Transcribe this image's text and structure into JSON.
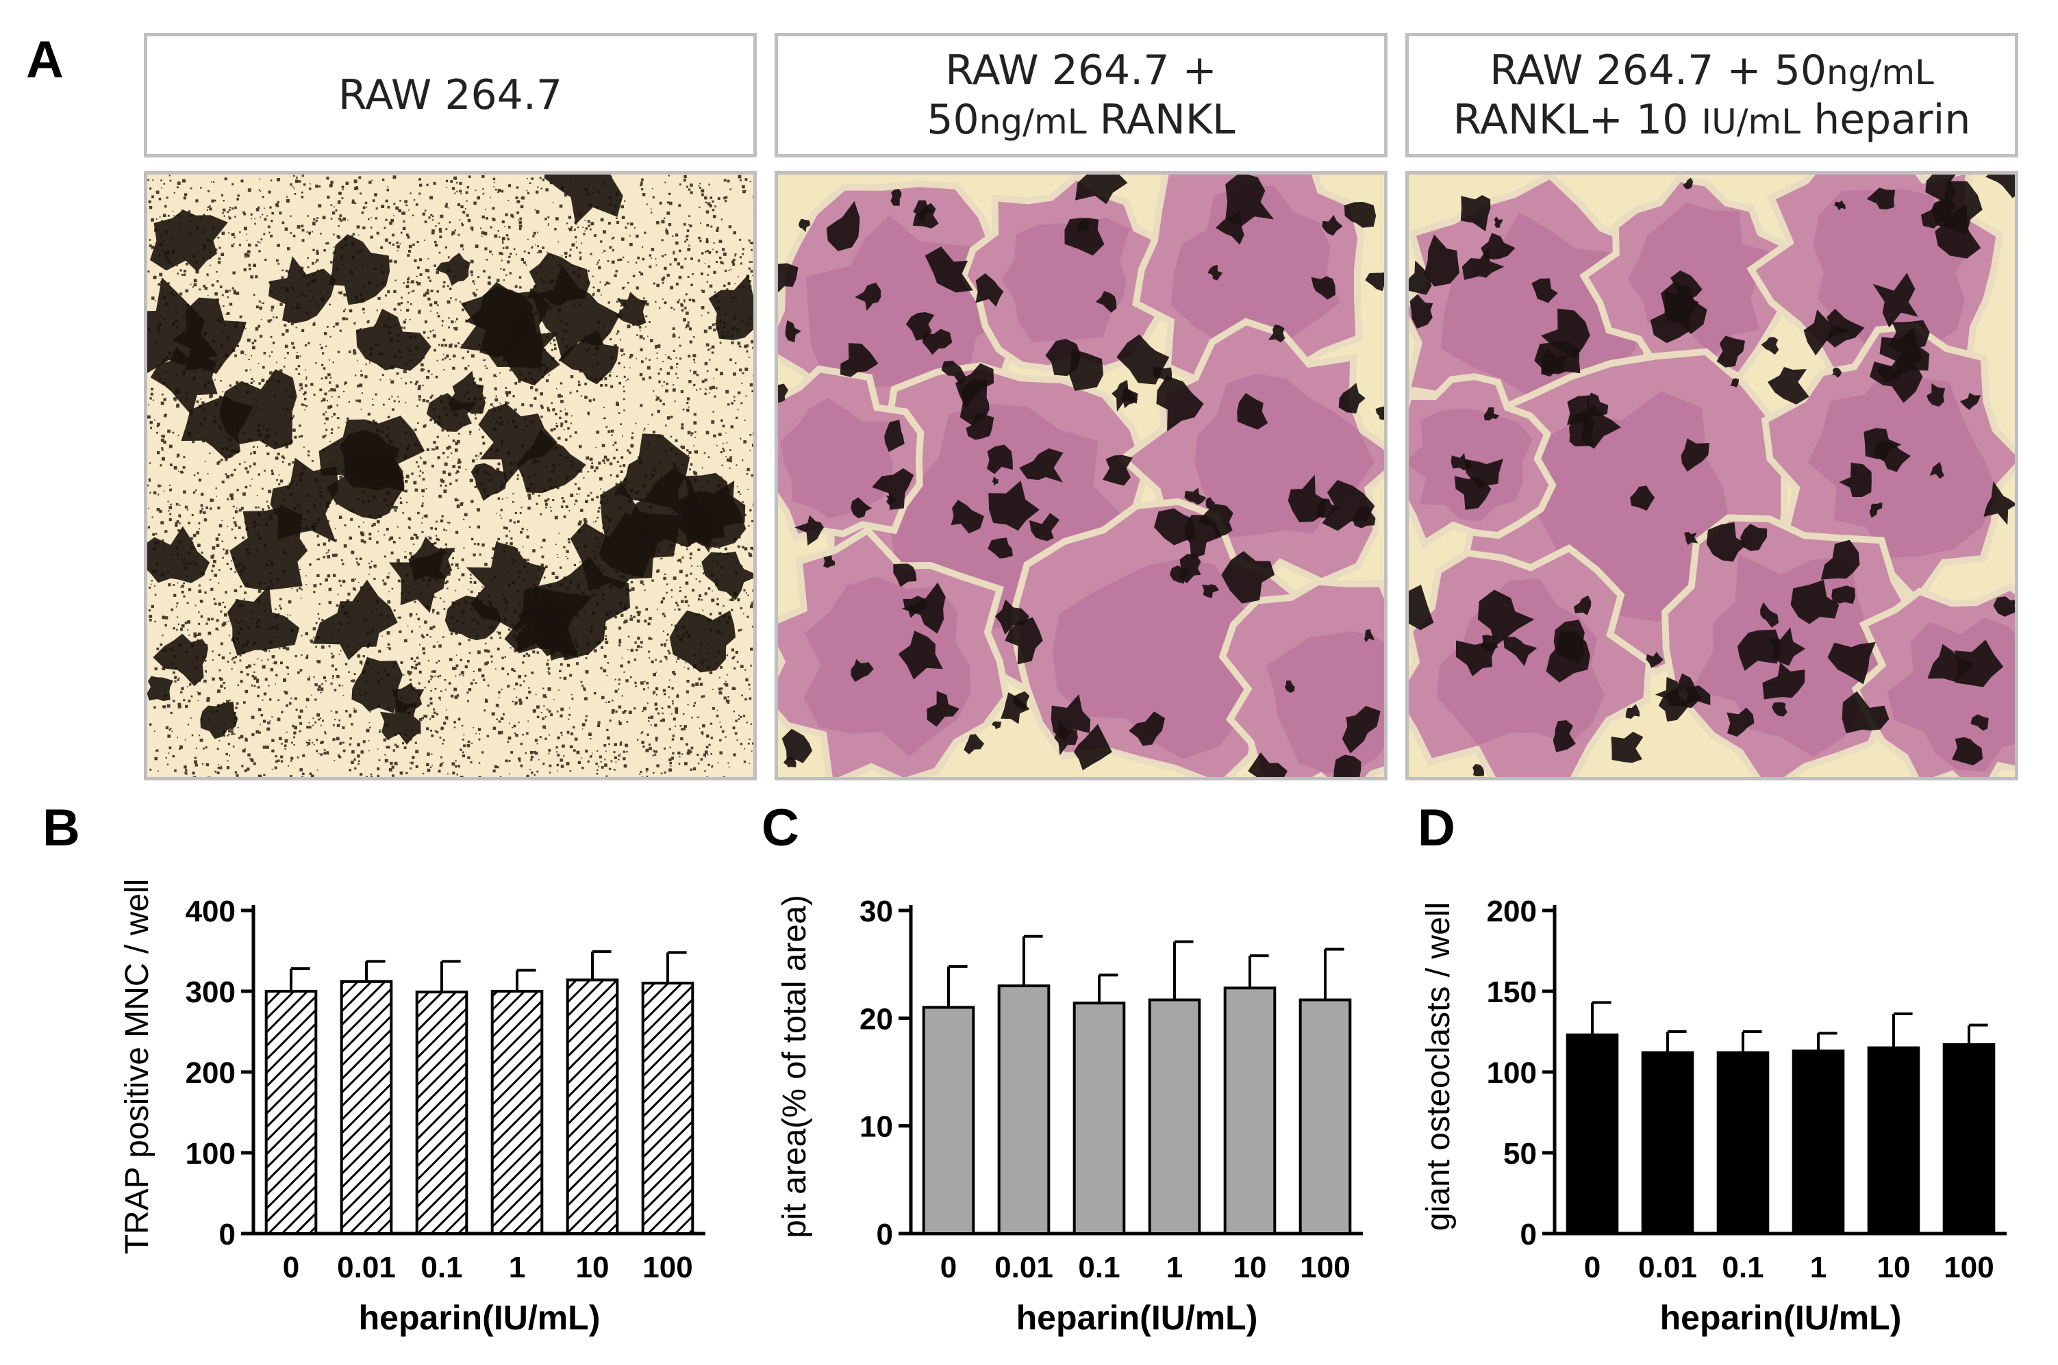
{
  "panel_letters": {
    "a": "A",
    "b": "B",
    "c": "C",
    "d": "D"
  },
  "panel_a": {
    "captions": [
      {
        "line1": "RAW 264.7",
        "line2": ""
      },
      {
        "line1": "RAW 264.7 +",
        "line2_pre": "50",
        "line2_unit": "ng/mL",
        "line2_post": " RANKL"
      },
      {
        "line1_pre": "RAW 264.7 + 50",
        "line1_unit": "ng/mL",
        "line2_pre": "RANKL+ 10 ",
        "line2_unit": "IU/mL",
        "line2_post": " heparin"
      }
    ]
  },
  "colors": {
    "hatch": "#000000",
    "gray_bar": "#a6a6a6",
    "black_bar": "#000000",
    "stain_purple": "#c97a9e",
    "background_pale": "#f4e9c8"
  },
  "chart_data": [
    {
      "panel": "B",
      "type": "bar",
      "fill": "hatched",
      "categories": [
        "0",
        "0.01",
        "0.1",
        "1",
        "10",
        "100"
      ],
      "values": [
        300,
        312,
        299,
        300,
        314,
        310
      ],
      "errors": [
        28,
        25,
        38,
        26,
        35,
        38
      ],
      "xlabel": "heparin(IU/mL)",
      "ylabel": "TRAP positive MNC / well",
      "ylim": [
        0,
        400
      ],
      "yticks": [
        0,
        100,
        200,
        300,
        400
      ]
    },
    {
      "panel": "C",
      "type": "bar",
      "fill": "gray",
      "categories": [
        "0",
        "0.01",
        "0.1",
        "1",
        "10",
        "100"
      ],
      "values": [
        21,
        23,
        21.4,
        21.7,
        22.8,
        21.7
      ],
      "errors": [
        3.8,
        4.6,
        2.6,
        5.4,
        3.0,
        4.7
      ],
      "xlabel": "heparin(IU/mL)",
      "ylabel": "pit area(% of total area)",
      "ylim": [
        0,
        30
      ],
      "yticks": [
        0,
        10,
        20,
        30
      ]
    },
    {
      "panel": "D",
      "type": "bar",
      "fill": "black",
      "categories": [
        "0",
        "0.01",
        "0.1",
        "1",
        "10",
        "100"
      ],
      "values": [
        123,
        112,
        112,
        113,
        115,
        117
      ],
      "errors": [
        20,
        13,
        13,
        11,
        21,
        12
      ],
      "xlabel": "heparin(IU/mL)",
      "ylabel": "giant osteoclasts / well",
      "ylim": [
        0,
        200
      ],
      "yticks": [
        0,
        50,
        100,
        150,
        200
      ]
    }
  ]
}
